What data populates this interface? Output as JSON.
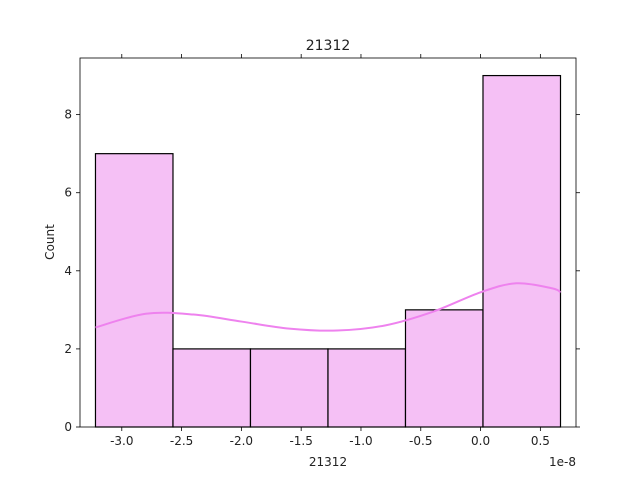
{
  "chart_data": {
    "type": "bar",
    "title": "21312",
    "xlabel": "21312",
    "ylabel": "Count",
    "x_offset_label": "1e-8",
    "bins": [
      {
        "x0": -3.22,
        "x1": -2.5719,
        "count": 7
      },
      {
        "x0": -2.5719,
        "x1": -1.9239,
        "count": 2
      },
      {
        "x0": -1.9239,
        "x1": -1.2758,
        "count": 2
      },
      {
        "x0": -1.2758,
        "x1": -0.6277,
        "count": 2
      },
      {
        "x0": -0.6277,
        "x1": 0.0203,
        "count": 3
      },
      {
        "x0": 0.0203,
        "x1": 0.6684,
        "count": 9
      }
    ],
    "kde": {
      "x": [
        -3.22,
        -2.8,
        -2.4,
        -2.0,
        -1.6,
        -1.2,
        -0.8,
        -0.4,
        0.0,
        0.3,
        0.6,
        0.6684
      ],
      "y": [
        2.55,
        2.9,
        2.88,
        2.7,
        2.52,
        2.47,
        2.6,
        2.95,
        3.45,
        3.68,
        3.55,
        3.45
      ]
    },
    "x_ticks": [
      -3.0,
      -2.5,
      -2.0,
      -1.5,
      -1.0,
      -0.5,
      0.0,
      0.5
    ],
    "x_tick_labels": [
      "-3.0",
      "-2.5",
      "-2.0",
      "-1.5",
      "-1.0",
      "-0.5",
      "0.0",
      "0.5"
    ],
    "y_ticks": [
      0,
      2,
      4,
      6,
      8
    ],
    "y_tick_labels": [
      "0",
      "2",
      "4",
      "6",
      "8"
    ],
    "xlim": [
      -3.3494,
      0.798
    ],
    "ylim": [
      0,
      9.45
    ],
    "grid": false,
    "colors": {
      "bar_fill": "#f5c0f5",
      "bar_edge": "#000000",
      "kde_line": "#ee82ee",
      "axis": "#000000",
      "text": "#222222"
    }
  }
}
